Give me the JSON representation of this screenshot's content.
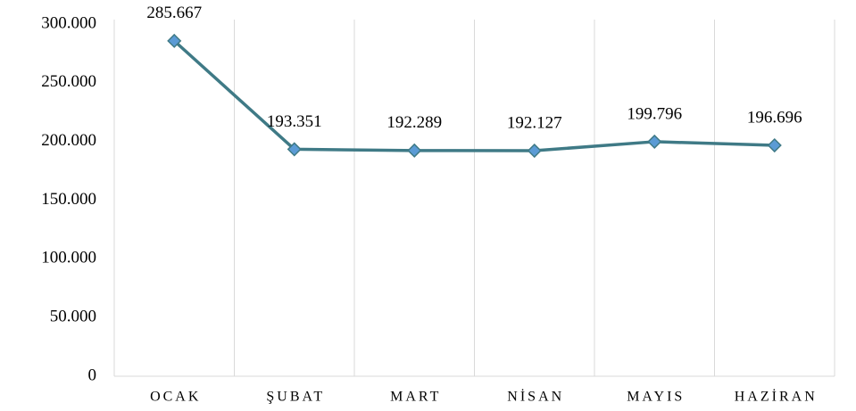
{
  "chart_data": {
    "type": "line",
    "categories": [
      "OCAK",
      "ŞUBAT",
      "MART",
      "NİSAN",
      "MAYIS",
      "HAZİRAN"
    ],
    "series": [
      {
        "name": null,
        "color": "#3f7a86",
        "marker_color": "#5b9bd5",
        "values": [
          285667,
          193351,
          192289,
          192127,
          199796,
          196696
        ],
        "value_labels": [
          "285.667",
          "193.351",
          "192.289",
          "192.127",
          "199.796",
          "196.696"
        ]
      }
    ],
    "ylim": [
      0,
      300000
    ],
    "yticks": [
      0,
      {
        "value": 50000,
        "label": "50.000"
      },
      {
        "value": 100000,
        "label": "100.000"
      },
      {
        "value": 150000,
        "label": "150.000"
      },
      {
        "value": 200000,
        "label": "200.000"
      },
      {
        "value": 250000,
        "label": "250.000"
      },
      {
        "value": 300000,
        "label": "300.000"
      }
    ]
  }
}
